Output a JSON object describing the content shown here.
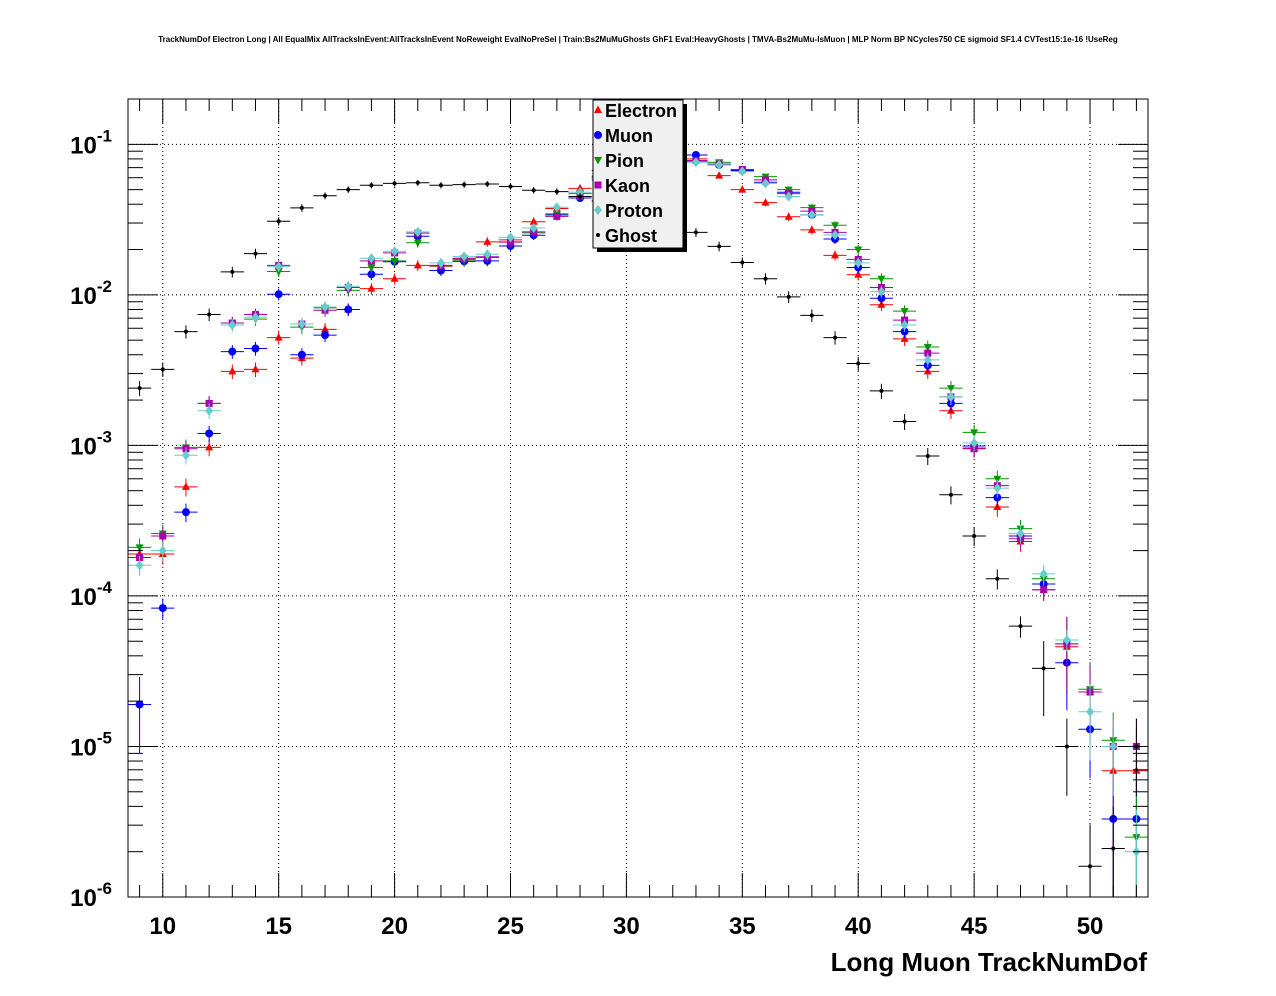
{
  "chart_data": {
    "type": "scatter",
    "title": "TrackNumDof Electron Long | All EqualMix AllTracksInEvent:AllTracksInEvent NoReweight EvalNoPreSel | Train:Bs2MuMuGhosts GhF1 Eval:HeavyGhosts | TMVA-Bs2MuMu-IsMuon | MLP Norm BP NCycles750 CE sigmoid SF1.4 CVTest15:1e-16 !UseReg",
    "xlabel": "Long Muon TrackNumDof",
    "ylabel": "",
    "xlim": [
      8.5,
      52.5
    ],
    "ylim": [
      1e-06,
      0.2
    ],
    "yscale": "log",
    "grid": true,
    "legend_position": "top-center",
    "x_ticks": [
      10,
      15,
      20,
      25,
      30,
      35,
      40,
      45,
      50
    ],
    "y_ticks": [
      {
        "value": 1e-06,
        "base": "10",
        "exp": "-6"
      },
      {
        "value": 1e-05,
        "base": "10",
        "exp": "-5"
      },
      {
        "value": 0.0001,
        "base": "10",
        "exp": "-4"
      },
      {
        "value": 0.001,
        "base": "10",
        "exp": "-3"
      },
      {
        "value": 0.01,
        "base": "10",
        "exp": "-2"
      },
      {
        "value": 0.1,
        "base": "10",
        "exp": "-1"
      }
    ],
    "series": [
      {
        "name": "Electron",
        "color": "#ff0000",
        "marker": "triangle-up",
        "x": [
          9,
          10,
          11,
          12,
          13,
          14,
          15,
          16,
          17,
          18,
          19,
          20,
          21,
          22,
          23,
          24,
          25,
          26,
          27,
          28,
          29,
          30,
          31,
          32,
          33,
          34,
          35,
          36,
          37,
          38,
          39,
          40,
          41,
          42,
          43,
          44,
          45,
          46,
          47,
          48,
          49,
          50,
          51,
          52
        ],
        "y": [
          0.00019,
          0.00019,
          0.00053,
          0.00097,
          0.0031,
          0.0032,
          0.0052,
          0.0038,
          0.0059,
          0.008,
          0.011,
          0.0128,
          0.0157,
          0.0155,
          0.0173,
          0.0225,
          0.0232,
          0.0306,
          0.0375,
          0.051,
          0.067,
          0.08,
          0.09,
          0.088,
          0.08,
          0.062,
          0.05,
          0.041,
          0.033,
          0.027,
          0.0183,
          0.0136,
          0.0086,
          0.0051,
          0.0031,
          0.0017,
          0.00096,
          0.00039,
          0.00023,
          0.00011,
          4.6e-05,
          2.3e-05,
          6.9e-06,
          6.9e-06
        ]
      },
      {
        "name": "Muon",
        "color": "#0000ff",
        "marker": "circle",
        "x": [
          9,
          10,
          11,
          12,
          13,
          14,
          15,
          16,
          17,
          18,
          19,
          20,
          21,
          22,
          23,
          24,
          25,
          26,
          27,
          28,
          29,
          30,
          31,
          32,
          33,
          34,
          35,
          36,
          37,
          38,
          39,
          40,
          41,
          42,
          43,
          44,
          45,
          46,
          47,
          48,
          49,
          50,
          51,
          52
        ],
        "y": [
          1.9e-05,
          8.3e-05,
          0.00036,
          0.0012,
          0.0042,
          0.0044,
          0.0101,
          0.004,
          0.0054,
          0.008,
          0.0137,
          0.0166,
          0.0245,
          0.0145,
          0.0167,
          0.0168,
          0.0211,
          0.0249,
          0.034,
          0.044,
          0.058,
          0.074,
          0.082,
          0.084,
          0.085,
          0.073,
          0.067,
          0.056,
          0.048,
          0.034,
          0.0235,
          0.0152,
          0.0095,
          0.0057,
          0.0034,
          0.0019,
          0.00099,
          0.00045,
          0.00025,
          0.00012,
          3.6e-05,
          1.3e-05,
          3.3e-06,
          3.3e-06
        ]
      },
      {
        "name": "Pion",
        "color": "#009900",
        "marker": "triangle-down",
        "x": [
          9,
          10,
          11,
          12,
          13,
          14,
          15,
          16,
          17,
          18,
          19,
          20,
          21,
          22,
          23,
          24,
          25,
          26,
          27,
          28,
          29,
          30,
          31,
          32,
          33,
          34,
          35,
          36,
          37,
          38,
          39,
          40,
          41,
          42,
          43,
          44,
          45,
          46,
          47,
          48,
          49,
          50,
          51,
          52
        ],
        "y": [
          0.00021,
          0.00026,
          0.00097,
          0.0019,
          0.0065,
          0.0069,
          0.0143,
          0.0061,
          0.0082,
          0.0107,
          0.0152,
          0.0168,
          0.0222,
          0.0156,
          0.017,
          0.0177,
          0.0225,
          0.0258,
          0.0345,
          0.047,
          0.061,
          0.074,
          0.08,
          0.08,
          0.077,
          0.076,
          0.068,
          0.061,
          0.05,
          0.038,
          0.029,
          0.02,
          0.0128,
          0.0078,
          0.0045,
          0.0024,
          0.00122,
          0.0006,
          0.00028,
          0.00013,
          4.8e-05,
          2.4e-05,
          1.1e-05,
          2.5e-06
        ]
      },
      {
        "name": "Kaon",
        "color": "#aa00aa",
        "marker": "square",
        "x": [
          9,
          10,
          11,
          12,
          13,
          14,
          15,
          16,
          17,
          18,
          19,
          20,
          21,
          22,
          23,
          24,
          25,
          26,
          27,
          28,
          29,
          30,
          31,
          32,
          33,
          34,
          35,
          36,
          37,
          38,
          39,
          40,
          41,
          42,
          43,
          44,
          45,
          46,
          47,
          48,
          49,
          50,
          51,
          52
        ],
        "y": [
          0.00018,
          0.00025,
          0.00095,
          0.0019,
          0.0065,
          0.0074,
          0.0157,
          0.0064,
          0.0079,
          0.0112,
          0.0168,
          0.019,
          0.0257,
          0.0157,
          0.0175,
          0.0179,
          0.0224,
          0.0262,
          0.0332,
          0.045,
          0.06,
          0.073,
          0.078,
          0.079,
          0.078,
          0.074,
          0.068,
          0.058,
          0.047,
          0.036,
          0.026,
          0.0172,
          0.0112,
          0.0068,
          0.0041,
          0.0021,
          0.00095,
          0.00054,
          0.00024,
          0.00011,
          4.8e-05,
          2.3e-05,
          1e-05,
          1e-05
        ]
      },
      {
        "name": "Proton",
        "color": "#66cccc",
        "marker": "diamond",
        "x": [
          9,
          10,
          11,
          12,
          13,
          14,
          15,
          16,
          17,
          18,
          19,
          20,
          21,
          22,
          23,
          24,
          25,
          26,
          27,
          28,
          29,
          30,
          31,
          32,
          33,
          34,
          35,
          36,
          37,
          38,
          39,
          40,
          41,
          42,
          43,
          44,
          45,
          46,
          47,
          48,
          49,
          50,
          51,
          52
        ],
        "y": [
          0.00016,
          0.0002,
          0.00086,
          0.0017,
          0.0063,
          0.0071,
          0.0154,
          0.0064,
          0.0083,
          0.0114,
          0.0175,
          0.0195,
          0.0262,
          0.0163,
          0.018,
          0.0186,
          0.0241,
          0.0278,
          0.0382,
          0.048,
          0.062,
          0.074,
          0.079,
          0.078,
          0.076,
          0.073,
          0.066,
          0.055,
          0.045,
          0.034,
          0.025,
          0.0163,
          0.0105,
          0.0063,
          0.0037,
          0.0021,
          0.00104,
          0.00052,
          0.00026,
          0.00014,
          5.1e-05,
          1.7e-05,
          1e-05,
          2e-06
        ]
      },
      {
        "name": "Ghost",
        "color": "#000000",
        "marker": "dot",
        "x": [
          9,
          10,
          11,
          12,
          13,
          14,
          15,
          16,
          17,
          18,
          19,
          20,
          21,
          22,
          23,
          24,
          25,
          26,
          27,
          28,
          29,
          30,
          31,
          32,
          33,
          34,
          35,
          36,
          37,
          38,
          39,
          40,
          41,
          42,
          43,
          44,
          45,
          46,
          47,
          48,
          49,
          50,
          51,
          52
        ],
        "y": [
          0.0024,
          0.0032,
          0.0057,
          0.0074,
          0.0142,
          0.0188,
          0.0308,
          0.0378,
          0.0455,
          0.05,
          0.0535,
          0.055,
          0.0555,
          0.0535,
          0.054,
          0.0545,
          0.0525,
          0.0495,
          0.0485,
          0.045,
          0.042,
          0.038,
          0.033,
          0.029,
          0.026,
          0.021,
          0.0164,
          0.0128,
          0.0097,
          0.0073,
          0.0052,
          0.0035,
          0.0023,
          0.00144,
          0.00085,
          0.00047,
          0.00025,
          0.00013,
          6.3e-05,
          3.3e-05,
          1e-05,
          1.6e-06,
          2.1e-06,
          1e-05
        ]
      }
    ]
  }
}
